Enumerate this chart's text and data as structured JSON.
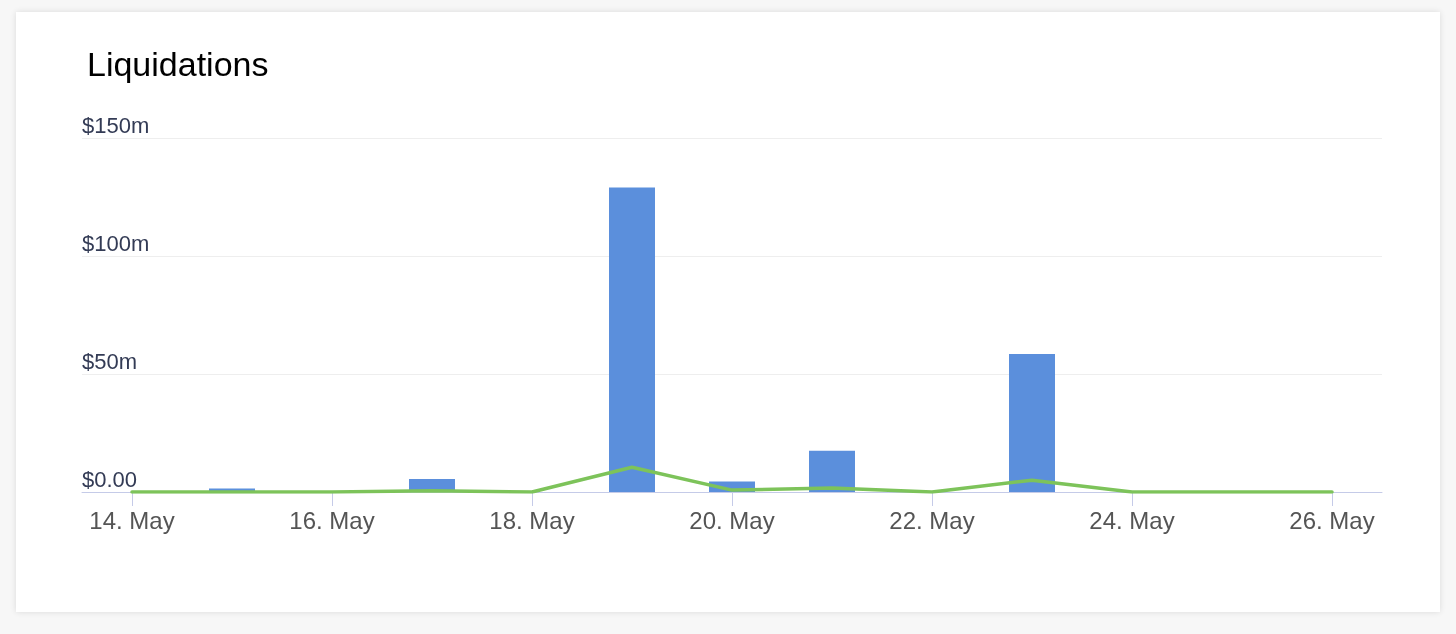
{
  "chart_data": {
    "type": "bar",
    "title": "Liquidations",
    "categories": [
      "14. May",
      null,
      "16. May",
      null,
      "18. May",
      null,
      "20. May",
      null,
      "22. May",
      null,
      "24. May",
      null,
      "26. May"
    ],
    "series": [
      {
        "color": "#5b8fdc",
        "values": [
          0,
          1.5,
          0,
          5.5,
          0,
          129,
          4.5,
          17.5,
          0,
          58.5,
          0,
          0,
          0
        ]
      },
      {
        "type": "line",
        "color": "#7dc35a",
        "values": [
          0,
          0,
          0,
          0.5,
          0,
          10.5,
          0.8,
          1.7,
          0,
          5,
          0,
          0,
          0
        ]
      }
    ],
    "ylim": [
      0,
      150
    ],
    "yticks": [
      {
        "value": 0,
        "label": "$0.00"
      },
      {
        "value": 50,
        "label": "$50m"
      },
      {
        "value": 100,
        "label": "$100m"
      },
      {
        "value": 150,
        "label": "$150m"
      }
    ],
    "grid": "y",
    "marker": "none",
    "line_style": "solid"
  }
}
